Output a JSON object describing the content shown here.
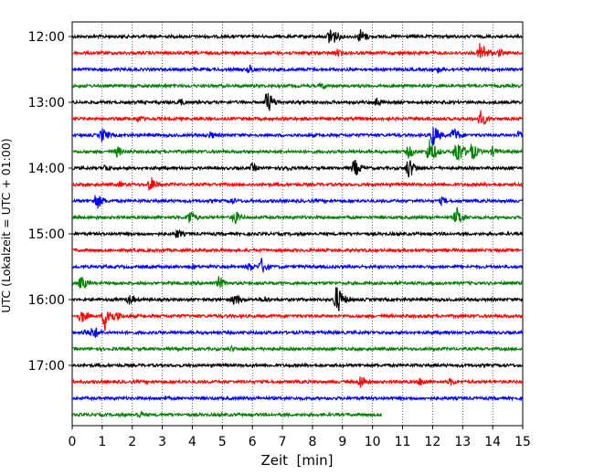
{
  "chart_data": {
    "type": "line",
    "xlabel": "Zeit  [min]",
    "ylabel": "UTC (Lokalzeit = UTC + 01:00)",
    "xlim": [
      0,
      15
    ],
    "x_ticks": [
      "0",
      "1",
      "2",
      "3",
      "4",
      "5",
      "6",
      "7",
      "8",
      "9",
      "10",
      "11",
      "12",
      "13",
      "14",
      "15"
    ],
    "y_tick_labels": [
      "12:00",
      "13:00",
      "14:00",
      "15:00",
      "16:00",
      "17:00"
    ],
    "y_tick_rows": [
      0,
      4,
      8,
      12,
      16,
      20
    ],
    "vertical_grid": "dotted",
    "row_interval_min": 15,
    "trace_colors": [
      "#000000",
      "#ff0000",
      "#0000ff",
      "#008000"
    ],
    "rows": [
      {
        "start": "12:00",
        "end_min": 15,
        "events": [
          [
            8.6,
            14
          ],
          [
            9.6,
            9
          ]
        ]
      },
      {
        "start": "12:15",
        "end_min": 15,
        "events": [
          [
            13.6,
            14
          ],
          [
            8.8,
            5
          ],
          [
            14.2,
            5
          ]
        ]
      },
      {
        "start": "12:30",
        "end_min": 15,
        "events": [
          [
            5.9,
            6
          ],
          [
            12.2,
            4
          ]
        ]
      },
      {
        "start": "12:45",
        "end_min": 15,
        "events": [
          [
            8.3,
            5
          ]
        ]
      },
      {
        "start": "13:00",
        "end_min": 15,
        "events": [
          [
            6.5,
            14
          ],
          [
            3.6,
            5
          ],
          [
            10.1,
            7
          ]
        ]
      },
      {
        "start": "13:15",
        "end_min": 15,
        "events": [
          [
            2.2,
            5
          ],
          [
            13.6,
            10
          ]
        ]
      },
      {
        "start": "13:30",
        "end_min": 15,
        "events": [
          [
            1.0,
            9
          ],
          [
            4.6,
            5
          ],
          [
            12.0,
            14
          ],
          [
            12.7,
            10
          ],
          [
            14.9,
            7
          ]
        ]
      },
      {
        "start": "13:45",
        "end_min": 15,
        "events": [
          [
            1.5,
            7
          ],
          [
            11.9,
            16
          ],
          [
            12.8,
            17
          ],
          [
            13.3,
            11
          ],
          [
            11.2,
            8
          ],
          [
            14.0,
            6
          ]
        ]
      },
      {
        "start": "14:00",
        "end_min": 15,
        "events": [
          [
            9.4,
            11
          ],
          [
            11.2,
            13
          ],
          [
            6.0,
            6
          ],
          [
            7.1,
            5
          ],
          [
            1.1,
            5
          ]
        ]
      },
      {
        "start": "14:15",
        "end_min": 15,
        "events": [
          [
            2.6,
            10
          ],
          [
            1.6,
            4
          ]
        ]
      },
      {
        "start": "14:30",
        "end_min": 15,
        "events": [
          [
            0.8,
            11
          ],
          [
            5.3,
            5
          ],
          [
            12.3,
            5
          ]
        ]
      },
      {
        "start": "14:45",
        "end_min": 15,
        "events": [
          [
            3.9,
            10
          ],
          [
            5.4,
            9
          ],
          [
            12.8,
            12
          ]
        ]
      },
      {
        "start": "15:00",
        "end_min": 15,
        "events": [
          [
            3.5,
            6
          ]
        ]
      },
      {
        "start": "15:15",
        "end_min": 15,
        "events": []
      },
      {
        "start": "15:30",
        "end_min": 15,
        "events": [
          [
            6.3,
            10
          ],
          [
            5.9,
            6
          ],
          [
            4.0,
            4
          ]
        ]
      },
      {
        "start": "15:45",
        "end_min": 15,
        "events": [
          [
            0.3,
            9
          ],
          [
            4.9,
            8
          ]
        ]
      },
      {
        "start": "16:00",
        "end_min": 15,
        "events": [
          [
            8.8,
            18
          ],
          [
            5.4,
            8
          ],
          [
            1.9,
            7
          ],
          [
            6.4,
            5
          ]
        ]
      },
      {
        "start": "16:15",
        "end_min": 15,
        "events": [
          [
            1.1,
            18
          ],
          [
            0.3,
            9
          ],
          [
            1.5,
            6
          ]
        ]
      },
      {
        "start": "16:30",
        "end_min": 15,
        "events": [
          [
            0.7,
            9
          ],
          [
            0.4,
            5
          ]
        ]
      },
      {
        "start": "16:45",
        "end_min": 15,
        "events": [
          [
            5.3,
            4
          ]
        ]
      },
      {
        "start": "17:00",
        "end_min": 15,
        "events": []
      },
      {
        "start": "17:15",
        "end_min": 15,
        "events": [
          [
            9.6,
            9
          ],
          [
            11.6,
            6
          ],
          [
            12.6,
            5
          ]
        ]
      },
      {
        "start": "17:30",
        "end_min": 15,
        "events": [
          [
            3.1,
            3
          ]
        ]
      },
      {
        "start": "17:45",
        "end_min": 10.3,
        "events": [
          [
            2.2,
            5
          ]
        ]
      }
    ]
  }
}
